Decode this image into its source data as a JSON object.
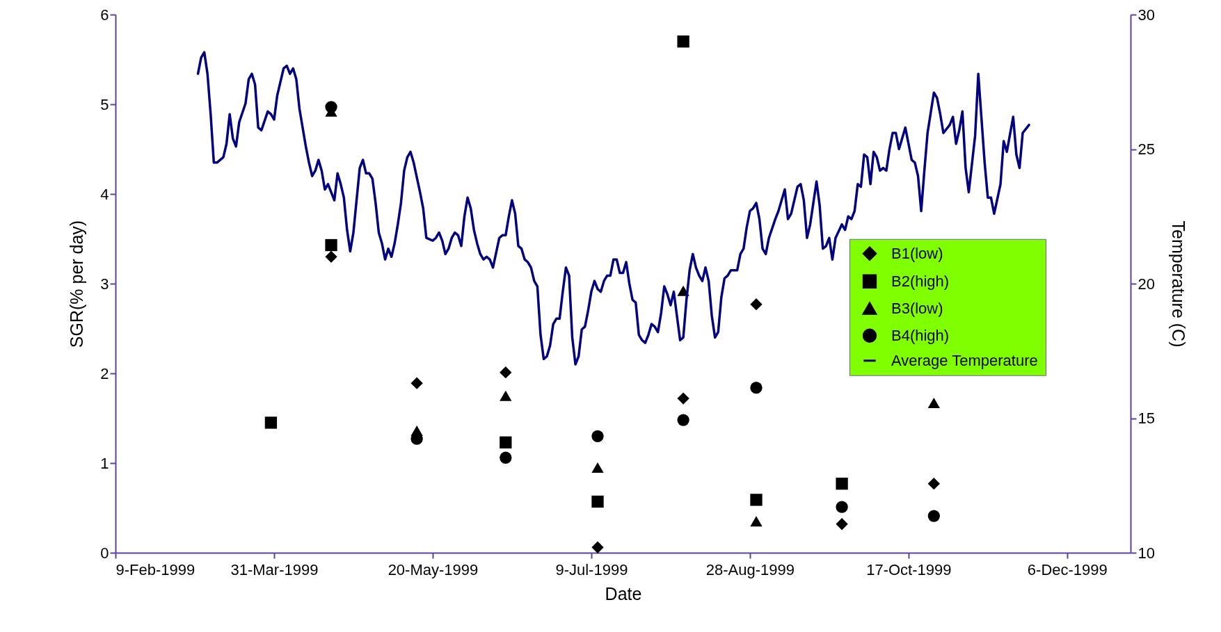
{
  "chart_data": {
    "type": "scatter",
    "xlabel": "Date",
    "ylabel": "SGR(% per day)",
    "y2label": "Temperature (C)",
    "xlim": [
      "1999-02-09",
      "1999-12-26"
    ],
    "xticks": [
      {
        "value": "1999-02-09",
        "label": "9-Feb-1999"
      },
      {
        "value": "1999-03-31",
        "label": "31-Mar-1999"
      },
      {
        "value": "1999-05-20",
        "label": "20-May-1999"
      },
      {
        "value": "1999-07-09",
        "label": "9-Jul-1999"
      },
      {
        "value": "1999-08-28",
        "label": "28-Aug-1999"
      },
      {
        "value": "1999-10-17",
        "label": "17-Oct-1999"
      },
      {
        "value": "1999-12-06",
        "label": "6-Dec-1999"
      }
    ],
    "ylim": [
      0,
      6
    ],
    "yticks": [
      0,
      1,
      2,
      3,
      4,
      5,
      6
    ],
    "y2lim": [
      10,
      30
    ],
    "y2ticks": [
      10,
      15,
      20,
      25,
      30
    ],
    "grid": false,
    "legend": "right",
    "series": [
      {
        "name": "B1(low)",
        "type": "scatter",
        "marker": "diamond",
        "color": "#000000",
        "x": [
          "1999-04-18",
          "1999-05-15",
          "1999-06-12",
          "1999-07-11",
          "1999-08-07",
          "1999-08-30",
          "1999-09-26",
          "1999-10-25"
        ],
        "values": [
          3.3,
          1.89,
          2.01,
          0.06,
          1.72,
          2.77,
          0.32,
          0.77
        ]
      },
      {
        "name": "B2(high)",
        "type": "scatter",
        "marker": "square",
        "color": "#000000",
        "x": [
          "1999-03-30",
          "1999-04-18",
          "1999-06-12",
          "1999-07-11",
          "1999-08-07",
          "1999-08-30",
          "1999-09-26"
        ],
        "values": [
          1.45,
          3.43,
          1.23,
          0.57,
          5.7,
          0.59,
          0.77
        ]
      },
      {
        "name": "B3(low)",
        "type": "scatter",
        "marker": "triangle",
        "color": "#000000",
        "x": [
          "1999-04-18",
          "1999-05-15",
          "1999-06-12",
          "1999-07-11",
          "1999-08-07",
          "1999-08-30",
          "1999-10-25"
        ],
        "values": [
          4.92,
          1.36,
          1.75,
          0.95,
          2.92,
          0.35,
          1.67
        ]
      },
      {
        "name": "B4(high)",
        "type": "scatter",
        "marker": "circle",
        "color": "#000000",
        "x": [
          "1999-04-18",
          "1999-05-15",
          "1999-06-12",
          "1999-07-11",
          "1999-08-07",
          "1999-08-30",
          "1999-09-26",
          "1999-10-25"
        ],
        "values": [
          4.97,
          1.27,
          1.06,
          1.3,
          1.48,
          1.84,
          0.51,
          0.41
        ]
      },
      {
        "name": "Average Temperature",
        "type": "line",
        "axis": "y2",
        "color": "#000080",
        "x": [
          "1999-03-07",
          "1999-03-08",
          "1999-03-09",
          "1999-03-10",
          "1999-03-11",
          "1999-03-12",
          "1999-03-13",
          "1999-03-15",
          "1999-03-16",
          "1999-03-17",
          "1999-03-18",
          "1999-03-19",
          "1999-03-20",
          "1999-03-22",
          "1999-03-23",
          "1999-03-24",
          "1999-03-25",
          "1999-03-26",
          "1999-03-27",
          "1999-03-29",
          "1999-03-30",
          "1999-03-31",
          "1999-04-01",
          "1999-04-03",
          "1999-04-04",
          "1999-04-05",
          "1999-04-06",
          "1999-04-07",
          "1999-04-08",
          "1999-04-10",
          "1999-04-11",
          "1999-04-12",
          "1999-04-13",
          "1999-04-14",
          "1999-04-15",
          "1999-04-16",
          "1999-04-17",
          "1999-04-19",
          "1999-04-20",
          "1999-04-21",
          "1999-04-22",
          "1999-04-23",
          "1999-04-24",
          "1999-04-25",
          "1999-04-26",
          "1999-04-27",
          "1999-04-28",
          "1999-04-29",
          "1999-04-30",
          "1999-05-01",
          "1999-05-02",
          "1999-05-03",
          "1999-05-04",
          "1999-05-05",
          "1999-05-06",
          "1999-05-07",
          "1999-05-08",
          "1999-05-09",
          "1999-05-10",
          "1999-05-11",
          "1999-05-12",
          "1999-05-13",
          "1999-05-14",
          "1999-05-16",
          "1999-05-17",
          "1999-05-18",
          "1999-05-20",
          "1999-05-21",
          "1999-05-22",
          "1999-05-23",
          "1999-05-24",
          "1999-05-25",
          "1999-05-26",
          "1999-05-27",
          "1999-05-28",
          "1999-05-29",
          "1999-05-30",
          "1999-05-31",
          "1999-06-01",
          "1999-06-02",
          "1999-06-03",
          "1999-06-04",
          "1999-06-05",
          "1999-06-06",
          "1999-06-07",
          "1999-06-08",
          "1999-06-10",
          "1999-06-11",
          "1999-06-12",
          "1999-06-13",
          "1999-06-14",
          "1999-06-15",
          "1999-06-16",
          "1999-06-17",
          "1999-06-18",
          "1999-06-19",
          "1999-06-20",
          "1999-06-21",
          "1999-06-22",
          "1999-06-23",
          "1999-06-24",
          "1999-06-25",
          "1999-06-26",
          "1999-06-27",
          "1999-06-28",
          "1999-06-29",
          "1999-06-30",
          "1999-07-01",
          "1999-07-02",
          "1999-07-03",
          "1999-07-04",
          "1999-07-05",
          "1999-07-06",
          "1999-07-07",
          "1999-07-08",
          "1999-07-09",
          "1999-07-10",
          "1999-07-11",
          "1999-07-12",
          "1999-07-13",
          "1999-07-14",
          "1999-07-15",
          "1999-07-16",
          "1999-07-17",
          "1999-07-18",
          "1999-07-19",
          "1999-07-20",
          "1999-07-21",
          "1999-07-22",
          "1999-07-23",
          "1999-07-24",
          "1999-07-25",
          "1999-07-26",
          "1999-07-27",
          "1999-07-28",
          "1999-07-29",
          "1999-07-30",
          "1999-07-31",
          "1999-08-01",
          "1999-08-02",
          "1999-08-03",
          "1999-08-04",
          "1999-08-05",
          "1999-08-06",
          "1999-08-07",
          "1999-08-08",
          "1999-08-09",
          "1999-08-10",
          "1999-08-11",
          "1999-08-12",
          "1999-08-13",
          "1999-08-14",
          "1999-08-15",
          "1999-08-16",
          "1999-08-17",
          "1999-08-18",
          "1999-08-19",
          "1999-08-20",
          "1999-08-21",
          "1999-08-22",
          "1999-08-23",
          "1999-08-24",
          "1999-08-25",
          "1999-08-26",
          "1999-08-27",
          "1999-08-28",
          "1999-08-29",
          "1999-08-30",
          "1999-08-31",
          "1999-09-01",
          "1999-09-02",
          "1999-09-03",
          "1999-09-05",
          "1999-09-06",
          "1999-09-08",
          "1999-09-09",
          "1999-09-10",
          "1999-09-12",
          "1999-09-13",
          "1999-09-14",
          "1999-09-15",
          "1999-09-16",
          "1999-09-18",
          "1999-09-19",
          "1999-09-20",
          "1999-09-21",
          "1999-09-22",
          "1999-09-23",
          "1999-09-24",
          "1999-09-26",
          "1999-09-27",
          "1999-09-28",
          "1999-09-29",
          "1999-09-30",
          "1999-10-01",
          "1999-10-02",
          "1999-10-03",
          "1999-10-04",
          "1999-10-05",
          "1999-10-06",
          "1999-10-07",
          "1999-10-08",
          "1999-10-09",
          "1999-10-10",
          "1999-10-11",
          "1999-10-12",
          "1999-10-13",
          "1999-10-14",
          "1999-10-16",
          "1999-10-17",
          "1999-10-18",
          "1999-10-19",
          "1999-10-20",
          "1999-10-21",
          "1999-10-22",
          "1999-10-23",
          "1999-10-25",
          "1999-10-26",
          "1999-10-27",
          "1999-10-28",
          "1999-10-30",
          "1999-10-31",
          "1999-11-01",
          "1999-11-02",
          "1999-11-03",
          "1999-11-04",
          "1999-11-05",
          "1999-11-07",
          "1999-11-08",
          "1999-11-10",
          "1999-11-11",
          "1999-11-12",
          "1999-11-13",
          "1999-11-15",
          "1999-11-16",
          "1999-11-17",
          "1999-11-19",
          "1999-11-20",
          "1999-11-21",
          "1999-11-22",
          "1999-11-24"
        ],
        "values": [
          27.8,
          28.4,
          28.6,
          27.8,
          26.3,
          24.5,
          24.5,
          24.7,
          25.2,
          26.3,
          25.4,
          25.1,
          26.0,
          26.7,
          27.6,
          27.8,
          27.4,
          25.8,
          25.7,
          26.4,
          26.3,
          26.1,
          27.0,
          28.0,
          28.1,
          27.8,
          28.0,
          27.6,
          26.5,
          25.1,
          24.5,
          24.0,
          24.2,
          24.6,
          24.2,
          23.5,
          23.7,
          23.1,
          24.1,
          23.7,
          23.2,
          22.0,
          21.2,
          21.9,
          23.1,
          24.3,
          24.6,
          24.1,
          24.1,
          23.9,
          23.0,
          21.9,
          21.5,
          20.9,
          21.3,
          21.0,
          21.5,
          22.2,
          23.0,
          24.2,
          24.7,
          24.9,
          24.5,
          23.4,
          22.8,
          21.7,
          21.6,
          21.7,
          21.9,
          21.6,
          21.1,
          21.3,
          21.7,
          21.9,
          21.8,
          21.4,
          22.5,
          23.2,
          22.8,
          22.0,
          21.5,
          21.1,
          20.9,
          21.0,
          20.9,
          20.6,
          21.7,
          21.8,
          21.8,
          22.5,
          23.1,
          22.6,
          21.4,
          21.3,
          20.9,
          20.8,
          20.6,
          20.1,
          19.9,
          18.1,
          17.2,
          17.3,
          17.7,
          18.5,
          18.7,
          18.7,
          19.7,
          20.6,
          20.3,
          18.0,
          17.0,
          17.3,
          18.3,
          18.4,
          19.0,
          19.7,
          20.1,
          19.8,
          19.7,
          20.1,
          20.3,
          20.3,
          20.9,
          20.9,
          20.4,
          20.4,
          20.8,
          20.0,
          19.4,
          19.3,
          18.1,
          17.9,
          17.8,
          18.1,
          18.5,
          18.4,
          18.2,
          18.9,
          19.9,
          19.6,
          19.2,
          19.7,
          18.8,
          17.9,
          18.0,
          19.4,
          20.5,
          21.1,
          20.6,
          20.3,
          20.1,
          20.6,
          20.1,
          18.8,
          18.0,
          18.2,
          19.5,
          20.2,
          20.3,
          20.5,
          20.5,
          20.5,
          21.1,
          21.3,
          22.1,
          22.7,
          22.8,
          23.0,
          22.4,
          21.3,
          21.1,
          21.7,
          22.4,
          22.7,
          23.5,
          22.4,
          22.6,
          23.6,
          23.7,
          23.1,
          21.7,
          22.2,
          23.8,
          22.9,
          21.3,
          21.4,
          21.7,
          20.9,
          21.7,
          22.2,
          22.0,
          22.5,
          22.4,
          22.7,
          23.7,
          23.6,
          24.8,
          24.7,
          23.7,
          24.9,
          24.7,
          24.2,
          24.3,
          24.2,
          25.0,
          25.6,
          25.6,
          25.0,
          25.8,
          25.2,
          24.6,
          24.5,
          24.0,
          22.7,
          24.2,
          25.6,
          27.1,
          26.9,
          26.3,
          25.6,
          25.9,
          26.2,
          25.2,
          25.7,
          26.4,
          24.3,
          23.4,
          25.5,
          27.8,
          24.5,
          23.2,
          23.2,
          22.6,
          23.7,
          25.3,
          24.9,
          26.2,
          24.8,
          24.3,
          25.6,
          25.9
        ]
      }
    ]
  }
}
